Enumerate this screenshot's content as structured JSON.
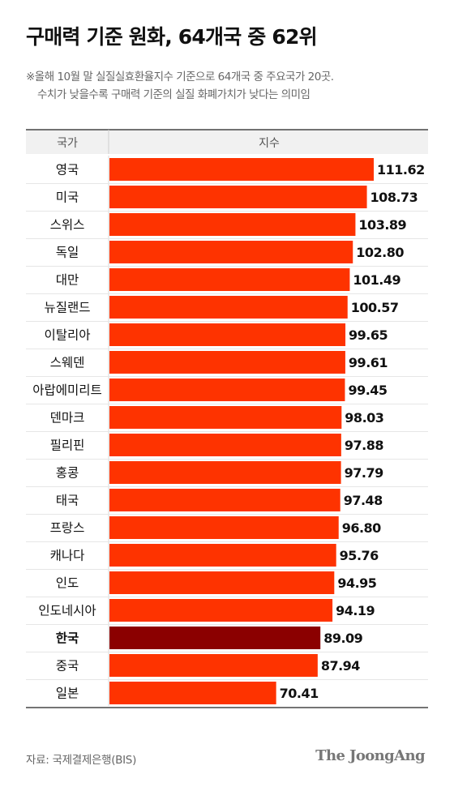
{
  "title": "구매력 기준 원화, 64개국 중 62위",
  "note": {
    "line1": "※올해 10월 말 실질실효환율지수 기준으로 64개국 중 주요국가 20곳.",
    "line2": "수치가 낮을수록 구매력 기준의 실질 화폐가치가 낮다는 의미임"
  },
  "source": "자료: 국제결제은행(BIS)",
  "brand": "The JoongAng",
  "colors": {
    "bar": "#fe3300",
    "highlight_bar": "#8b0000",
    "header_bg": "#f1f1f1"
  },
  "chart_data": {
    "type": "bar",
    "orientation": "horizontal",
    "columns": [
      "국가",
      "지수"
    ],
    "categories": [
      "영국",
      "미국",
      "스위스",
      "독일",
      "대만",
      "뉴질랜드",
      "이탈리아",
      "스웨덴",
      "아랍에미리트",
      "덴마크",
      "필리핀",
      "홍콩",
      "태국",
      "프랑스",
      "캐나다",
      "인도",
      "인도네시아",
      "한국",
      "중국",
      "일본"
    ],
    "values": [
      111.62,
      108.73,
      103.89,
      102.8,
      101.49,
      100.57,
      99.65,
      99.61,
      99.45,
      98.03,
      97.88,
      97.79,
      97.48,
      96.8,
      95.76,
      94.95,
      94.19,
      89.09,
      87.94,
      70.41
    ],
    "value_labels": [
      "111.62",
      "108.73",
      "103.89",
      "102.80",
      "101.49",
      "100.57",
      "99.65",
      "99.61",
      "99.45",
      "98.03",
      "97.88",
      "97.79",
      "97.48",
      "96.80",
      "95.76",
      "94.95",
      "94.19",
      "89.09",
      "87.94",
      "70.41"
    ],
    "highlight": "한국",
    "xlim": [
      0,
      111.62
    ],
    "grid": false,
    "legend": "none"
  }
}
